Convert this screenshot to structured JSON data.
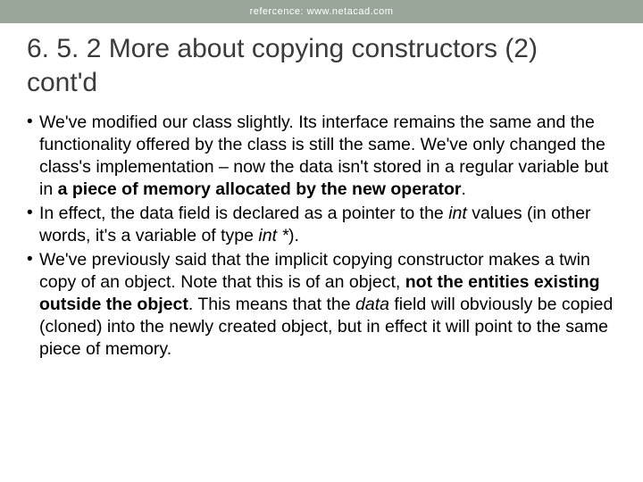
{
  "header": {
    "reference_text": "refercence: www.netacad.com",
    "background_color": "#9aa59a",
    "text_color": "#ffffff",
    "font_size": 11
  },
  "title": {
    "text": "6.5.2 More about copying constructors (2) cont'd",
    "text1": "6. 5. 2 More about copying constructors (2)",
    "text2": "cont'd",
    "color": "#3a3a3a",
    "font_size": 30
  },
  "bullets": [
    {
      "segments": [
        {
          "t": "We've modified our class slightly. Its interface remains the same and the functionality offered by the class is still the same. We've only changed the class's implementation – now the data isn't stored in a regular variable but in ",
          "b": false,
          "i": false
        },
        {
          "t": "a piece of memory allocated by the new operator",
          "b": true,
          "i": false
        },
        {
          "t": ".",
          "b": false,
          "i": false
        }
      ]
    },
    {
      "segments": [
        {
          "t": "In effect, the data field is declared as a pointer to the ",
          "b": false,
          "i": false
        },
        {
          "t": "int",
          "b": false,
          "i": true
        },
        {
          "t": " values (in other words, it's a variable of type ",
          "b": false,
          "i": false
        },
        {
          "t": "int *",
          "b": false,
          "i": true
        },
        {
          "t": ").",
          "b": false,
          "i": false
        }
      ]
    },
    {
      "segments": [
        {
          "t": "We've previously said that the implicit copying constructor makes a twin copy of an object. Note that this is of an object, ",
          "b": false,
          "i": false
        },
        {
          "t": "not the entities existing outside the object",
          "b": true,
          "i": false
        },
        {
          "t": ". This means that the ",
          "b": false,
          "i": false
        },
        {
          "t": "data",
          "b": false,
          "i": true
        },
        {
          "t": " field will obviously be copied (cloned) into the newly created object, but in effect it will point to the same piece of memory.",
          "b": false,
          "i": false
        }
      ]
    }
  ],
  "body_style": {
    "font_size": 19.5,
    "color": "#000000",
    "line_height": 1.28
  }
}
